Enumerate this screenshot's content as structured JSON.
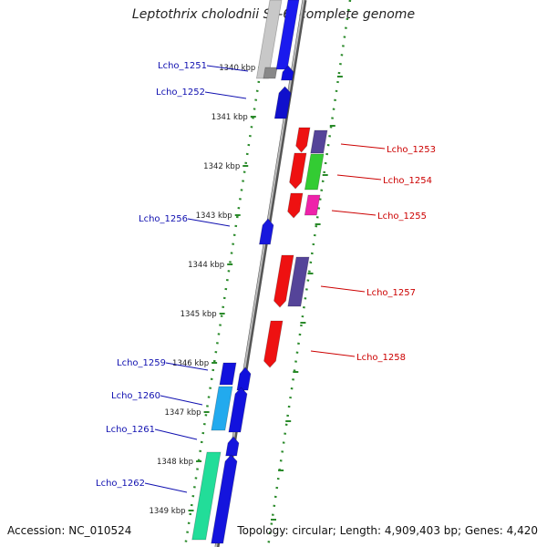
{
  "title": "Leptothrix cholodnii SP-6, complete genome",
  "accession": "Accession: NC_010524",
  "topology": "Topology: circular; Length: 4,909,403 bp; Genes: 4,420",
  "colors": {
    "backbone": "#888888",
    "ruler_dots": "#2a8a2a",
    "left_label": "#1010b0",
    "right_label": "#cc0000"
  },
  "ticks": [
    {
      "label": "1340 kbp"
    },
    {
      "label": "1341 kbp"
    },
    {
      "label": "1342 kbp"
    },
    {
      "label": "1343 kbp"
    },
    {
      "label": "1344 kbp"
    },
    {
      "label": "1345 kbp"
    },
    {
      "label": "1346 kbp"
    },
    {
      "label": "1347 kbp"
    },
    {
      "label": "1348 kbp"
    },
    {
      "label": "1349 kbp"
    }
  ],
  "genes_left": [
    {
      "label": "Lcho_1251"
    },
    {
      "label": "Lcho_1252"
    },
    {
      "label": "Lcho_1256"
    },
    {
      "label": "Lcho_1259"
    },
    {
      "label": "Lcho_1260"
    },
    {
      "label": "Lcho_1261"
    },
    {
      "label": "Lcho_1262"
    }
  ],
  "genes_right": [
    {
      "label": "Lcho_1253"
    },
    {
      "label": "Lcho_1254"
    },
    {
      "label": "Lcho_1255"
    },
    {
      "label": "Lcho_1257"
    },
    {
      "label": "Lcho_1258"
    }
  ]
}
